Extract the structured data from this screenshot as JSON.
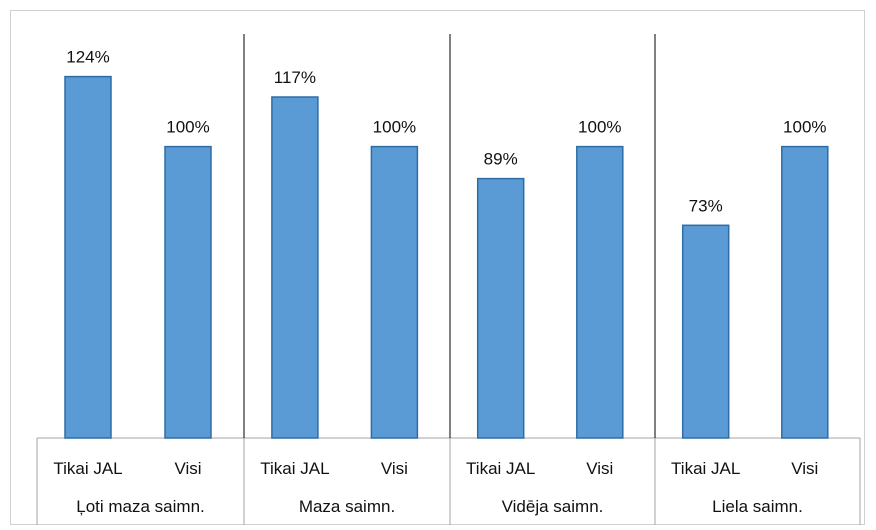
{
  "chart_data": {
    "type": "bar",
    "groups": [
      {
        "label": "Ļoti maza saimn.",
        "categories": [
          "Tikai JAL",
          "Visi"
        ],
        "values": [
          124,
          100
        ],
        "data_labels": [
          "124%",
          "100%"
        ]
      },
      {
        "label": "Maza saimn.",
        "categories": [
          "Tikai JAL",
          "Visi"
        ],
        "values": [
          117,
          100
        ],
        "data_labels": [
          "117%",
          "100%"
        ]
      },
      {
        "label": "Vidēja saimn.",
        "categories": [
          "Tikai JAL",
          "Visi"
        ],
        "values": [
          89,
          100
        ],
        "data_labels": [
          "89%",
          "100%"
        ]
      },
      {
        "label": "Liela saimn.",
        "categories": [
          "Tikai JAL",
          "Visi"
        ],
        "values": [
          73,
          100
        ],
        "data_labels": [
          "73%",
          "100%"
        ]
      }
    ],
    "unit": "%",
    "ylim": [
      0,
      140
    ],
    "grid": false,
    "legend": "none",
    "colors": {
      "bar_fill": "#5B9BD5",
      "bar_stroke": "#2E6DA4",
      "axis": "#a6a6a6",
      "separator": "#000000"
    }
  }
}
